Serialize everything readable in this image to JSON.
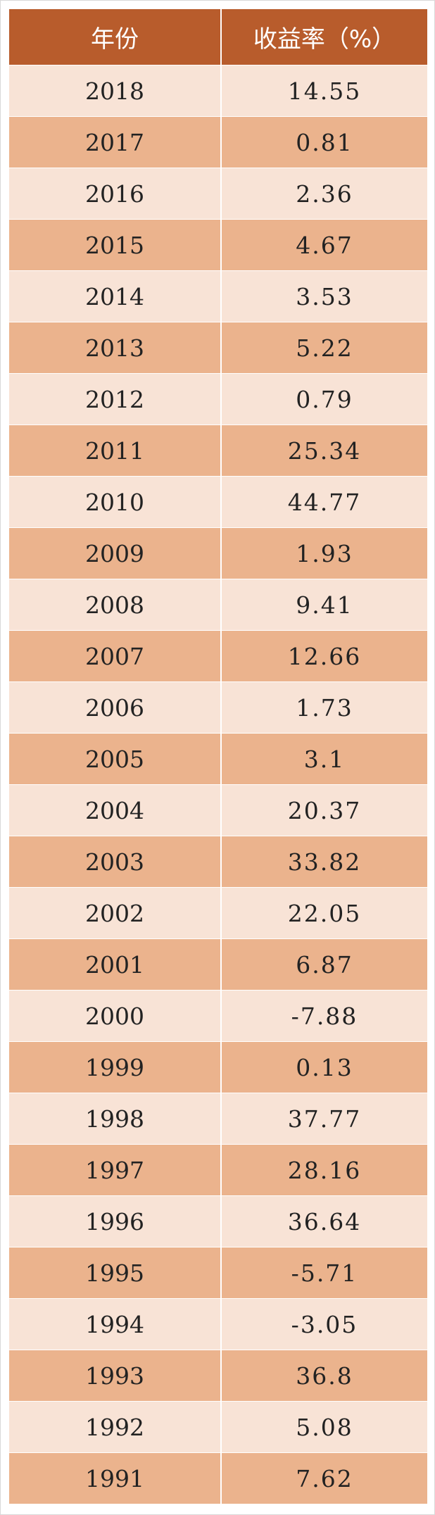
{
  "table": {
    "headers": [
      "年份",
      "收益率（%）"
    ],
    "rows": [
      {
        "year": "2018",
        "rate": "14.55"
      },
      {
        "year": "2017",
        "rate": "0.81"
      },
      {
        "year": "2016",
        "rate": "2.36"
      },
      {
        "year": "2015",
        "rate": "4.67"
      },
      {
        "year": "2014",
        "rate": "3.53"
      },
      {
        "year": "2013",
        "rate": "5.22"
      },
      {
        "year": "2012",
        "rate": "0.79"
      },
      {
        "year": "2011",
        "rate": "25.34"
      },
      {
        "year": "2010",
        "rate": "44.77"
      },
      {
        "year": "2009",
        "rate": "1.93"
      },
      {
        "year": "2008",
        "rate": "9.41"
      },
      {
        "year": "2007",
        "rate": "12.66"
      },
      {
        "year": "2006",
        "rate": "1.73"
      },
      {
        "year": "2005",
        "rate": "3.1"
      },
      {
        "year": "2004",
        "rate": "20.37"
      },
      {
        "year": "2003",
        "rate": "33.82"
      },
      {
        "year": "2002",
        "rate": "22.05"
      },
      {
        "year": "2001",
        "rate": "6.87"
      },
      {
        "year": "2000",
        "rate": "-7.88"
      },
      {
        "year": "1999",
        "rate": "0.13"
      },
      {
        "year": "1998",
        "rate": "37.77"
      },
      {
        "year": "1997",
        "rate": "28.16"
      },
      {
        "year": "1996",
        "rate": "36.64"
      },
      {
        "year": "1995",
        "rate": "-5.71"
      },
      {
        "year": "1994",
        "rate": "-3.05"
      },
      {
        "year": "1993",
        "rate": "36.8"
      },
      {
        "year": "1992",
        "rate": "5.08"
      },
      {
        "year": "1991",
        "rate": "7.62"
      }
    ]
  },
  "colors": {
    "header_bg": "#b85c2c",
    "row_light": "#f8e3d6",
    "row_dark": "#ebb38d"
  }
}
